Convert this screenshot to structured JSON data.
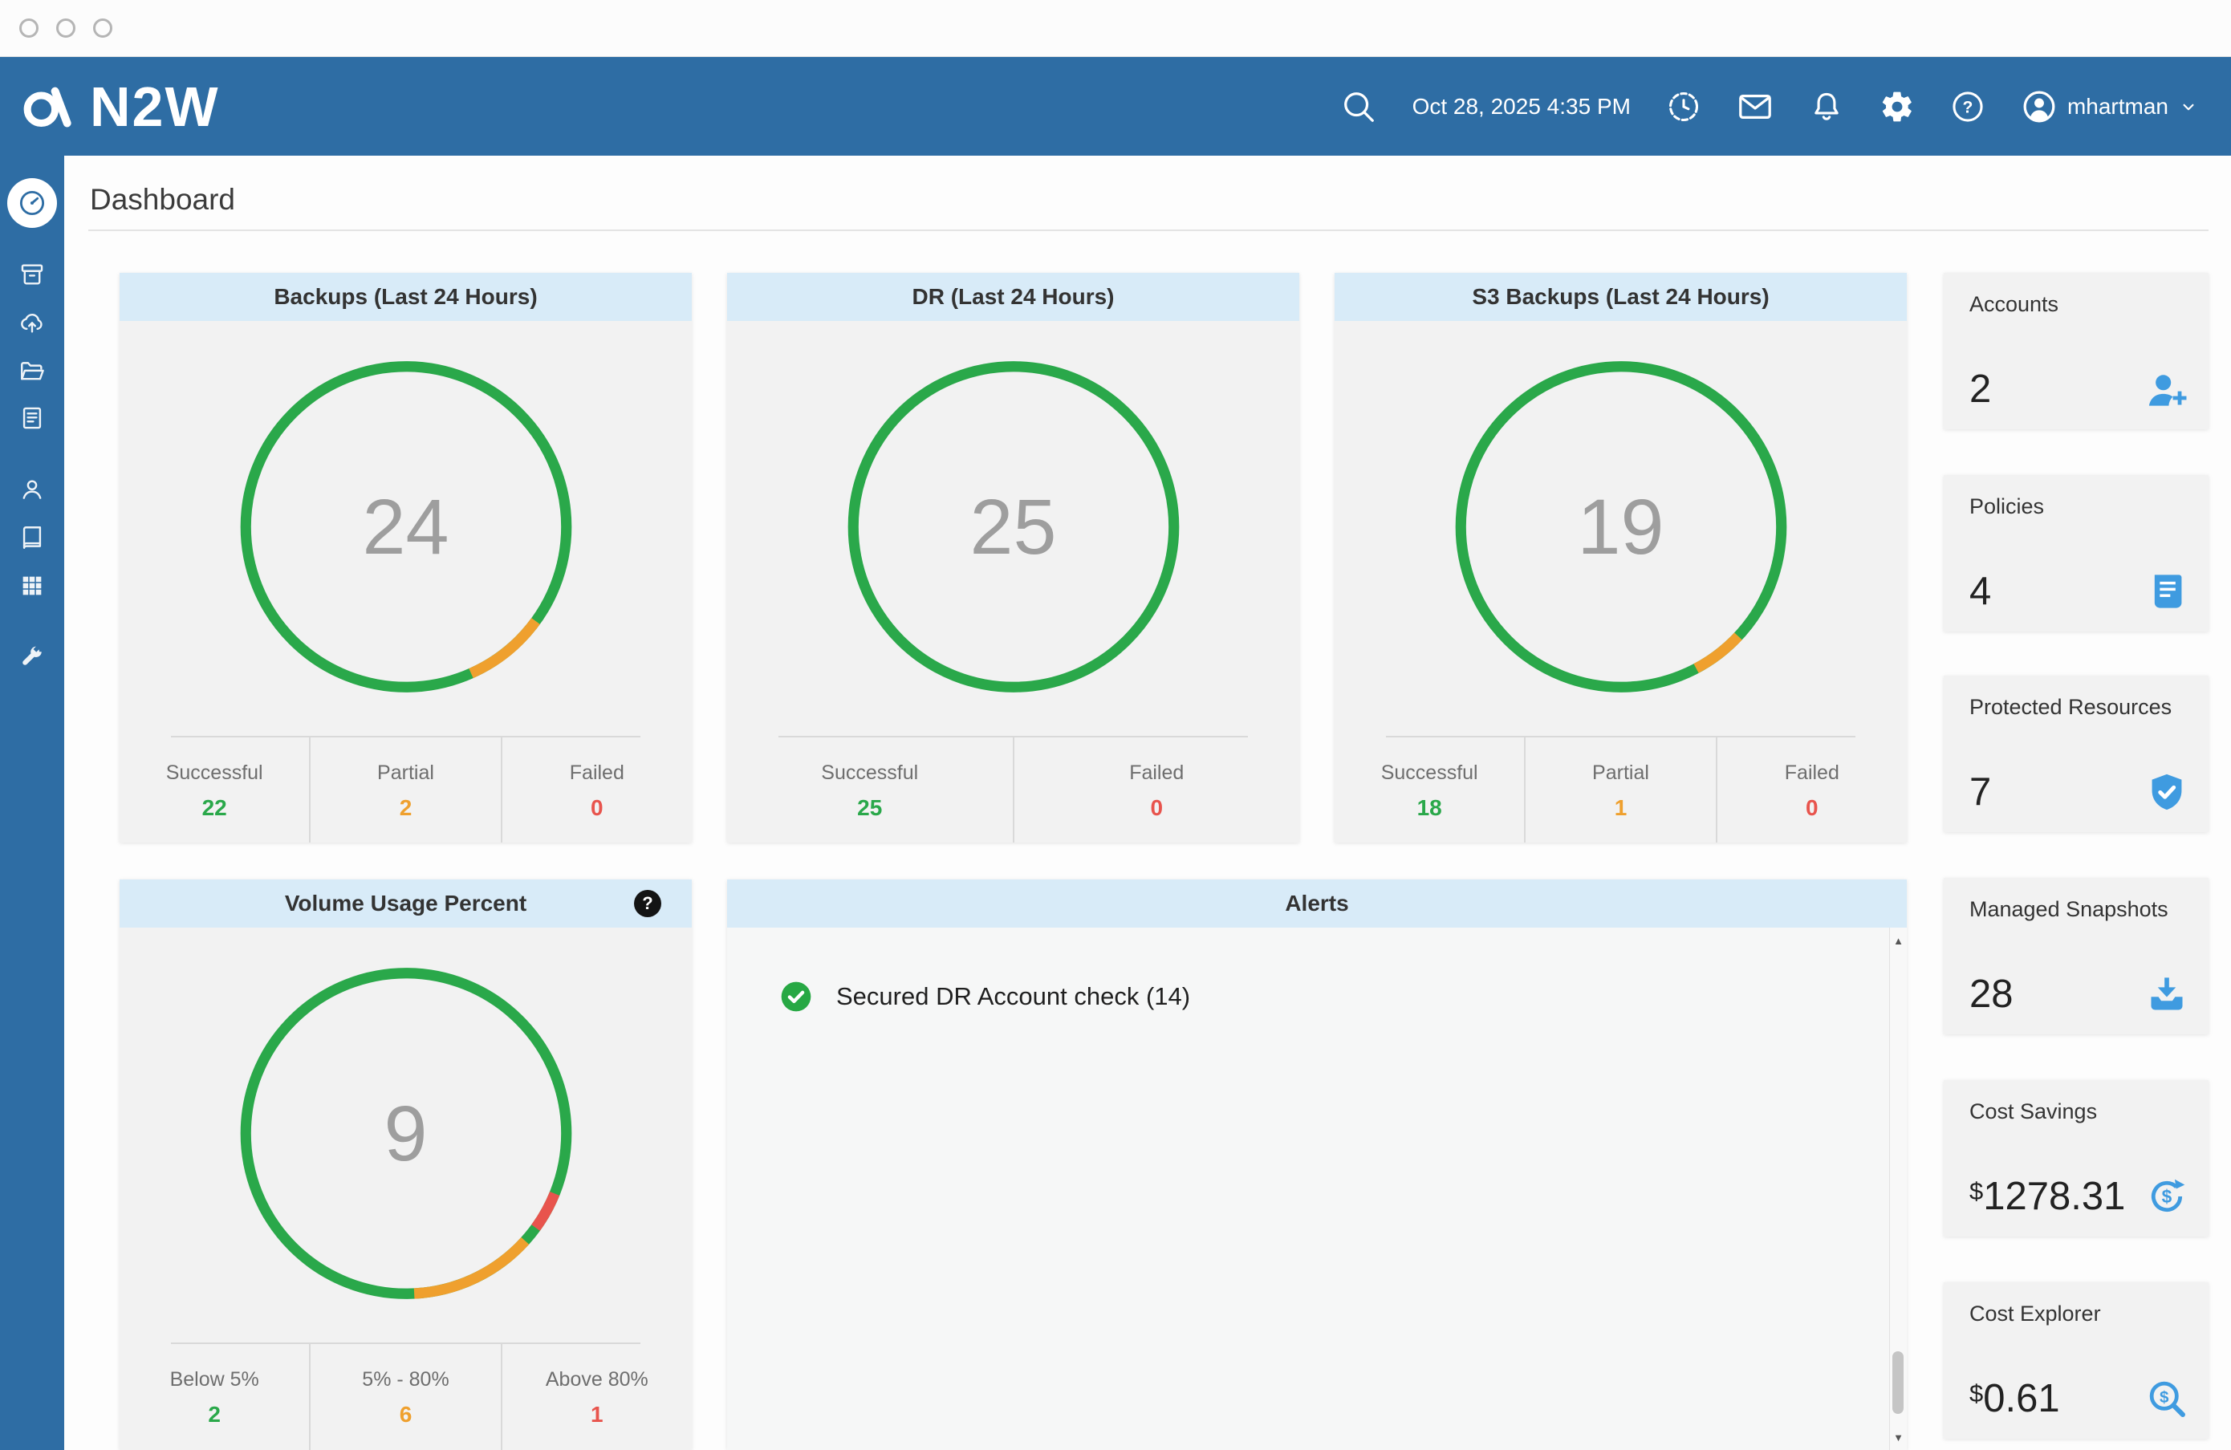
{
  "window": {
    "controls": [
      "close",
      "minimize",
      "maximize"
    ]
  },
  "header": {
    "logo": "N2W",
    "datetime": "Oct 28, 2025 4:35 PM",
    "username": "mhartman",
    "icons": [
      "search-icon",
      "history-clock-icon",
      "mail-icon",
      "bell-icon",
      "gear-icon",
      "help-icon",
      "user-icon",
      "chevron-down-icon"
    ]
  },
  "sidebar": {
    "active_item": "dashboard",
    "items": [
      {
        "name": "dashboard",
        "icon": "speedometer-icon",
        "active": true
      },
      {
        "name": "backup-monitor",
        "icon": "archive-icon"
      },
      {
        "name": "recovery-monitor",
        "icon": "cloud-upload-icon"
      },
      {
        "name": "resources",
        "icon": "folder-open-icon"
      },
      {
        "name": "reports",
        "icon": "document-icon"
      },
      {
        "name": "accounts",
        "icon": "user-icon"
      },
      {
        "name": "logs",
        "icon": "book-icon"
      },
      {
        "name": "schedules",
        "icon": "grid-icon"
      },
      {
        "name": "server-settings",
        "icon": "wrench-icon"
      }
    ]
  },
  "page": {
    "title": "Dashboard"
  },
  "chart_data": [
    {
      "type": "donut",
      "title": "Backups (Last 24 Hours)",
      "total": "24",
      "segments": [
        {
          "label": "successful",
          "color": "#2aa84a",
          "start": 0,
          "end": 360
        },
        {
          "label": "partial",
          "color": "#efa02e",
          "start": 126,
          "end": 156
        }
      ],
      "stats": [
        {
          "label": "Successful",
          "value": "22"
        },
        {
          "label": "Partial",
          "value": "2"
        },
        {
          "label": "Failed",
          "value": "0"
        }
      ]
    },
    {
      "type": "donut",
      "title": "DR (Last 24 Hours)",
      "total": "25",
      "segments": [
        {
          "label": "successful",
          "color": "#2aa84a",
          "start": 0,
          "end": 360
        }
      ],
      "stats": [
        {
          "label": "Successful",
          "value": "25"
        },
        {
          "label": "Failed",
          "value": "0"
        }
      ]
    },
    {
      "type": "donut",
      "title": "S3 Backups (Last 24 Hours)",
      "total": "19",
      "segments": [
        {
          "label": "successful",
          "color": "#2aa84a",
          "start": 0,
          "end": 360
        },
        {
          "label": "partial",
          "color": "#efa02e",
          "start": 133,
          "end": 152
        }
      ],
      "stats": [
        {
          "label": "Successful",
          "value": "18"
        },
        {
          "label": "Partial",
          "value": "1"
        },
        {
          "label": "Failed",
          "value": "0"
        }
      ]
    },
    {
      "type": "donut",
      "title": "Volume Usage Percent",
      "total": "9",
      "segments": [
        {
          "label": "below-5",
          "color": "#2aa84a",
          "start": 0,
          "end": 360
        },
        {
          "label": "above-80",
          "color": "#e8544d",
          "start": 112,
          "end": 126
        },
        {
          "label": "5-to-80",
          "color": "#efa02e",
          "start": 132,
          "end": 177
        }
      ],
      "stats": [
        {
          "label": "Below 5%",
          "value": "2"
        },
        {
          "label": "5% - 80%",
          "value": "6"
        },
        {
          "label": "Above 80%",
          "value": "1"
        }
      ]
    }
  ],
  "alerts": {
    "title": "Alerts",
    "items": [
      {
        "icon": "check-circle-icon",
        "text": "Secured DR Account check (14)",
        "status_color": "#27a844"
      }
    ]
  },
  "summary_cards": [
    {
      "title": "Accounts",
      "prefix": "",
      "value": "2",
      "icon": "person-add-icon"
    },
    {
      "title": "Policies",
      "prefix": "",
      "value": "4",
      "icon": "policy-icon"
    },
    {
      "title": "Protected Resources",
      "prefix": "",
      "value": "7",
      "icon": "shield-check-icon"
    },
    {
      "title": "Managed Snapshots",
      "prefix": "",
      "value": "28",
      "icon": "snapshot-download-icon"
    },
    {
      "title": "Cost Savings",
      "prefix": "$",
      "value": "1278.31",
      "icon": "dollar-refresh-icon"
    },
    {
      "title": "Cost Explorer",
      "prefix": "$",
      "value": "0.61",
      "icon": "dollar-search-icon"
    }
  ],
  "colors": {
    "header_blue": "#2e6da4",
    "card_header_blue": "#d8ebf8",
    "icon_blue": "#3f9be0",
    "success_green": "#2aa84a",
    "warning_orange": "#efa02e",
    "error_red": "#e8544d"
  }
}
